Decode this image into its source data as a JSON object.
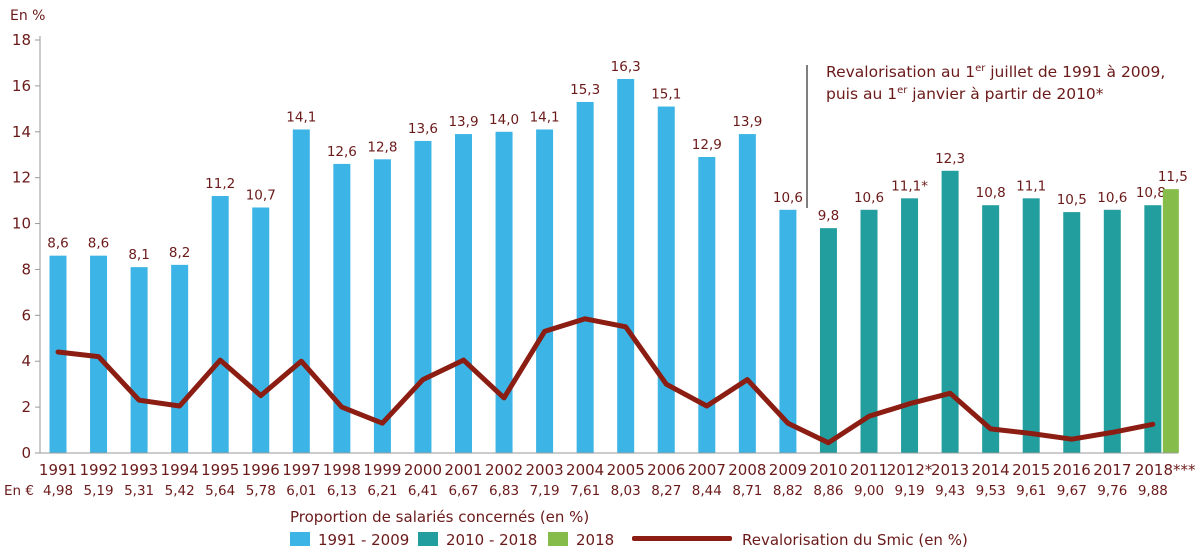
{
  "chart_data": {
    "type": "bar",
    "y_unit_label": "En %",
    "ylim": [
      0,
      18
    ],
    "yticks": [
      0,
      2,
      4,
      6,
      8,
      10,
      12,
      14,
      16,
      18
    ],
    "categories": [
      "1991",
      "1992",
      "1993",
      "1994",
      "1995",
      "1996",
      "1997",
      "1998",
      "1999",
      "2000",
      "2001",
      "2002",
      "2003",
      "2004",
      "2005",
      "2006",
      "2007",
      "2008",
      "2009",
      "2010",
      "2011",
      "2012*",
      "2013",
      "2014",
      "2015",
      "2016",
      "2017",
      "2018***"
    ],
    "euro_row_label": "En €",
    "smic_values": [
      "4,98",
      "5,19",
      "5,31",
      "5,42",
      "5,64",
      "5,78",
      "6,01",
      "6,13",
      "6,21",
      "6,41",
      "6,67",
      "6,83",
      "7,19",
      "7,61",
      "8,03",
      "8,27",
      "8,44",
      "8,71",
      "8,82",
      "8,86",
      "9,00",
      "9,19",
      "9,43",
      "9,53",
      "9,61",
      "9,67",
      "9,76",
      "9,88"
    ],
    "series": [
      {
        "name": "Proportion de salariés concernés (en %)",
        "type": "bar",
        "values": [
          8.6,
          8.6,
          8.1,
          8.2,
          11.2,
          10.7,
          14.1,
          12.6,
          12.8,
          13.6,
          13.9,
          14.0,
          14.1,
          15.3,
          16.3,
          15.1,
          12.9,
          13.9,
          10.6,
          9.8,
          10.6,
          11.1,
          12.3,
          10.8,
          11.1,
          10.5,
          10.6,
          10.8
        ],
        "labels": [
          "8,6",
          "8,6",
          "8,1",
          "8,2",
          "11,2",
          "10,7",
          "14,1",
          "12,6",
          "12,8",
          "13,6",
          "13,9",
          "14,0",
          "14,1",
          "15,3",
          "16,3",
          "15,1",
          "12,9",
          "13,9",
          "10,6",
          "9,8",
          "10,6",
          "11,1*",
          "12,3",
          "10,8",
          "11,1",
          "10,5",
          "10,6",
          "10,8"
        ]
      },
      {
        "name": "Revalorisation du Smic (en %)",
        "type": "line",
        "values": [
          4.4,
          4.2,
          2.3,
          2.05,
          4.05,
          2.5,
          4.0,
          2.0,
          1.3,
          3.2,
          4.05,
          2.4,
          5.3,
          5.85,
          5.5,
          3.0,
          2.05,
          3.2,
          1.3,
          0.45,
          1.6,
          2.15,
          2.6,
          1.05,
          0.85,
          0.6,
          0.9,
          1.25
        ]
      }
    ],
    "extra_bar": {
      "index": 27,
      "value": 11.5,
      "label": "11,5"
    },
    "color_groups": [
      {
        "label": "1991 - 2009",
        "from": 0,
        "to": 18,
        "color": "#3cb4e5"
      },
      {
        "label": "2010 - 2018",
        "from": 19,
        "to": 27,
        "color": "#239e9f"
      },
      {
        "label": "2018",
        "color": "#86bd4a"
      }
    ],
    "line_color": "#8b1d12",
    "text_color": "#6b1a1a",
    "annotation": {
      "line1_a": "Revalorisation au 1",
      "line1_sup": "er",
      "line1_b": " juillet de 1991 à 2009,",
      "line2_a": "puis au 1",
      "line2_sup": "er",
      "line2_b": " janvier à partir de 2010*"
    },
    "legend": {
      "bar_title": "Proportion de salariés concernés (en %)",
      "items": [
        "1991 - 2009",
        "2010 - 2018",
        "2018"
      ],
      "line_label": "Revalorisation du Smic (en %)"
    }
  }
}
